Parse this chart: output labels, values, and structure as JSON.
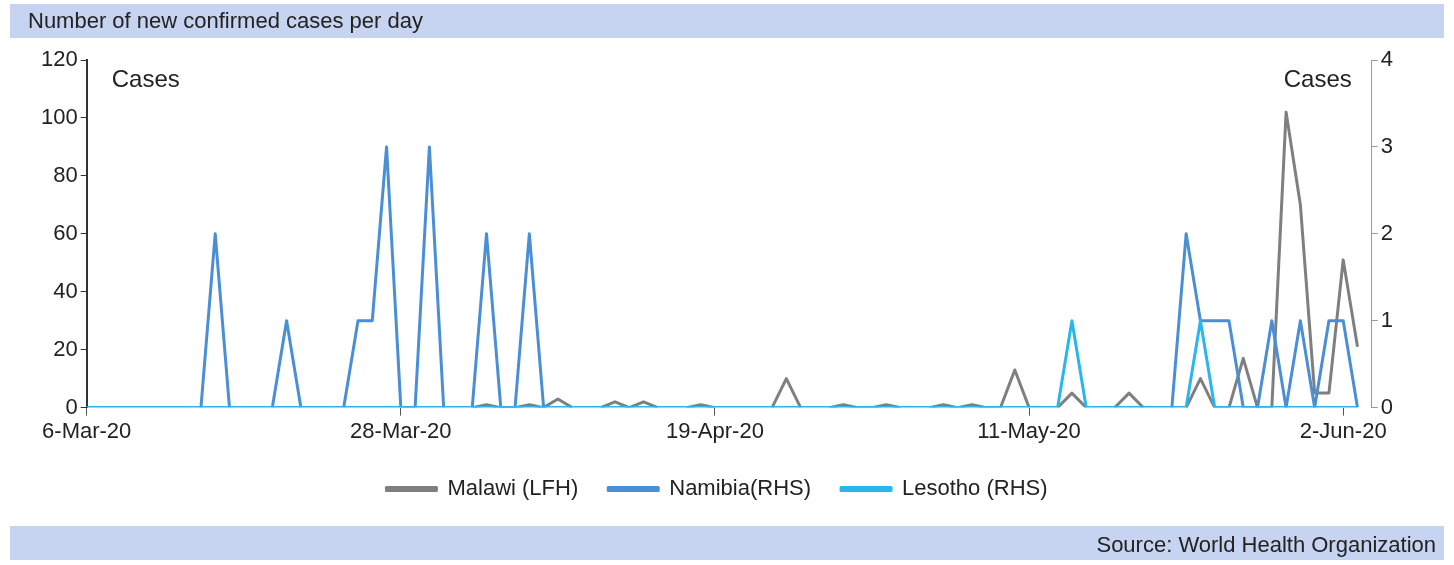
{
  "chart_data": {
    "type": "line",
    "title": "Number of new confirmed cases per day",
    "ylabel": "Cases",
    "y2label": "Cases",
    "x": [
      "2020-03-06",
      "2020-03-07",
      "2020-03-08",
      "2020-03-09",
      "2020-03-10",
      "2020-03-11",
      "2020-03-12",
      "2020-03-13",
      "2020-03-14",
      "2020-03-15",
      "2020-03-16",
      "2020-03-17",
      "2020-03-18",
      "2020-03-19",
      "2020-03-20",
      "2020-03-21",
      "2020-03-22",
      "2020-03-23",
      "2020-03-24",
      "2020-03-25",
      "2020-03-26",
      "2020-03-27",
      "2020-03-28",
      "2020-03-29",
      "2020-03-30",
      "2020-03-31",
      "2020-04-01",
      "2020-04-02",
      "2020-04-03",
      "2020-04-04",
      "2020-04-05",
      "2020-04-06",
      "2020-04-07",
      "2020-04-08",
      "2020-04-09",
      "2020-04-10",
      "2020-04-11",
      "2020-04-12",
      "2020-04-13",
      "2020-04-14",
      "2020-04-15",
      "2020-04-16",
      "2020-04-17",
      "2020-04-18",
      "2020-04-19",
      "2020-04-20",
      "2020-04-21",
      "2020-04-22",
      "2020-04-23",
      "2020-04-24",
      "2020-04-25",
      "2020-04-26",
      "2020-04-27",
      "2020-04-28",
      "2020-04-29",
      "2020-04-30",
      "2020-05-01",
      "2020-05-02",
      "2020-05-03",
      "2020-05-04",
      "2020-05-05",
      "2020-05-06",
      "2020-05-07",
      "2020-05-08",
      "2020-05-09",
      "2020-05-10",
      "2020-05-11",
      "2020-05-12",
      "2020-05-13",
      "2020-05-14",
      "2020-05-15",
      "2020-05-16",
      "2020-05-17",
      "2020-05-18",
      "2020-05-19",
      "2020-05-20",
      "2020-05-21",
      "2020-05-22",
      "2020-05-23",
      "2020-05-24",
      "2020-05-25",
      "2020-05-26",
      "2020-05-27",
      "2020-05-28",
      "2020-05-29",
      "2020-05-30",
      "2020-05-31",
      "2020-06-01",
      "2020-06-02",
      "2020-06-03"
    ],
    "series": [
      {
        "name": "Malawi (LFH)",
        "color": "#7f7f7f",
        "values": [
          null,
          null,
          null,
          null,
          null,
          null,
          null,
          null,
          null,
          null,
          null,
          null,
          null,
          null,
          null,
          null,
          null,
          null,
          null,
          null,
          null,
          null,
          null,
          null,
          null,
          null,
          null,
          0,
          1,
          0,
          0,
          1,
          0,
          3,
          0,
          null,
          0,
          2,
          0,
          2,
          0,
          null,
          0,
          1,
          0,
          null,
          null,
          null,
          0,
          10,
          0,
          null,
          0,
          1,
          0,
          0,
          1,
          0,
          null,
          0,
          1,
          0,
          1,
          0,
          0,
          13,
          0,
          null,
          0,
          5,
          0,
          null,
          0,
          5,
          0,
          null,
          null,
          0,
          10,
          0,
          0,
          17,
          0,
          0,
          102,
          70,
          5,
          5,
          51,
          21
        ]
      },
      {
        "name": "Namibia(RHS)",
        "color": "#4a8fd6",
        "axis": "y2",
        "values": [
          null,
          null,
          null,
          null,
          null,
          null,
          null,
          null,
          0,
          2,
          0,
          null,
          null,
          0,
          1,
          0,
          null,
          null,
          0,
          1,
          1,
          3,
          0,
          0,
          3,
          0,
          null,
          0,
          2,
          0,
          0,
          2,
          0,
          null,
          null,
          null,
          null,
          null,
          null,
          null,
          null,
          null,
          null,
          null,
          null,
          null,
          null,
          null,
          null,
          null,
          null,
          null,
          null,
          null,
          null,
          null,
          null,
          null,
          null,
          null,
          null,
          null,
          null,
          null,
          null,
          null,
          null,
          null,
          null,
          null,
          null,
          null,
          null,
          null,
          null,
          null,
          0,
          2,
          1,
          1,
          1,
          0,
          0,
          1,
          0,
          1,
          0,
          1,
          1,
          0
        ]
      },
      {
        "name": "Lesotho (RHS)",
        "color": "#29b6ef",
        "axis": "y2",
        "values": [
          0,
          0,
          0,
          0,
          0,
          0,
          0,
          0,
          0,
          0,
          0,
          0,
          0,
          0,
          0,
          0,
          0,
          0,
          0,
          0,
          0,
          0,
          0,
          0,
          0,
          0,
          0,
          0,
          0,
          0,
          0,
          0,
          0,
          0,
          0,
          0,
          0,
          0,
          0,
          0,
          0,
          0,
          0,
          0,
          0,
          0,
          0,
          0,
          0,
          0,
          0,
          0,
          0,
          0,
          0,
          0,
          0,
          0,
          0,
          0,
          0,
          0,
          0,
          0,
          0,
          0,
          0,
          0,
          0,
          1,
          0,
          0,
          0,
          0,
          0,
          0,
          0,
          0,
          1,
          0,
          0,
          0,
          0,
          0,
          0,
          0,
          0,
          0,
          0,
          0
        ]
      }
    ],
    "xlim": [
      "2020-03-06",
      "2020-06-04"
    ],
    "xticks": [
      {
        "value": "2020-03-06",
        "label": "6-Mar-20"
      },
      {
        "value": "2020-03-28",
        "label": "28-Mar-20"
      },
      {
        "value": "2020-04-19",
        "label": "19-Apr-20"
      },
      {
        "value": "2020-05-11",
        "label": "11-May-20"
      },
      {
        "value": "2020-06-02",
        "label": "2-Jun-20"
      }
    ],
    "ylim": [
      0,
      120
    ],
    "yticks": [
      0,
      20,
      40,
      60,
      80,
      100,
      120
    ],
    "y2lim": [
      0,
      4
    ],
    "y2ticks": [
      0,
      1,
      2,
      3,
      4
    ],
    "legend": "bottom",
    "marker": "none",
    "line_style": "solid",
    "annotations": [
      "Source: World Health Organization"
    ]
  }
}
